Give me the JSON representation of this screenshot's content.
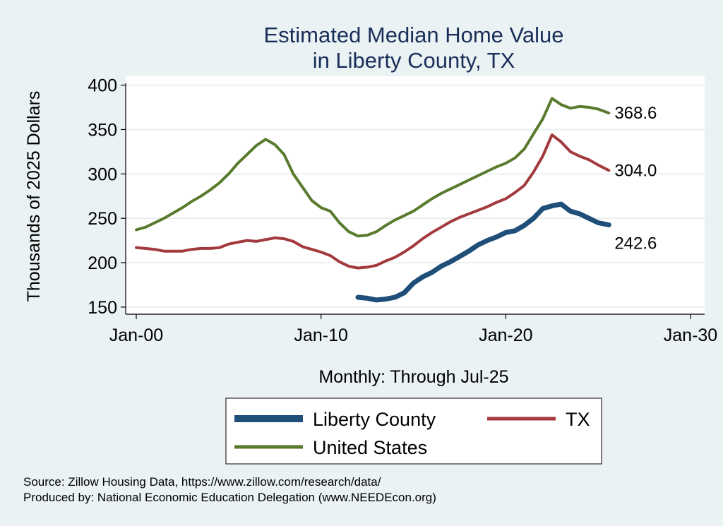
{
  "chart_data": {
    "type": "line",
    "title": "Estimated Median Home Value",
    "subtitle": "in Liberty County, TX",
    "xlabel": "Monthly: Through Jul-25",
    "ylabel": "Thousands of 2025 Dollars",
    "x_ticks": [
      "Jan-00",
      "Jan-10",
      "Jan-20",
      "Jan-30"
    ],
    "y_ticks": [
      150,
      200,
      250,
      300,
      350,
      400
    ],
    "xlim": [
      2000,
      2030
    ],
    "ylim": [
      142,
      410
    ],
    "grid": true,
    "legend_position": "bottom",
    "series": [
      {
        "name": "Liberty County",
        "color": "#1f4e79",
        "end_label": "242.6",
        "points": [
          [
            2012.0,
            161
          ],
          [
            2012.5,
            160
          ],
          [
            2013.0,
            158
          ],
          [
            2013.5,
            159
          ],
          [
            2014.0,
            161
          ],
          [
            2014.5,
            166
          ],
          [
            2015.0,
            177
          ],
          [
            2015.5,
            184
          ],
          [
            2016.0,
            189
          ],
          [
            2016.5,
            196
          ],
          [
            2017.0,
            201
          ],
          [
            2017.5,
            207
          ],
          [
            2018.0,
            213
          ],
          [
            2018.5,
            220
          ],
          [
            2019.0,
            225
          ],
          [
            2019.5,
            229
          ],
          [
            2020.0,
            234
          ],
          [
            2020.5,
            236
          ],
          [
            2021.0,
            242
          ],
          [
            2021.5,
            250
          ],
          [
            2022.0,
            261
          ],
          [
            2022.5,
            264
          ],
          [
            2023.0,
            266
          ],
          [
            2023.5,
            258
          ],
          [
            2024.0,
            255
          ],
          [
            2024.5,
            250
          ],
          [
            2025.0,
            245
          ],
          [
            2025.58,
            242.6
          ]
        ]
      },
      {
        "name": "TX",
        "color": "#a23a3e",
        "end_label": "304.0",
        "points": [
          [
            2000.0,
            217
          ],
          [
            2000.5,
            216
          ],
          [
            2001.0,
            215
          ],
          [
            2001.5,
            213
          ],
          [
            2002.0,
            213
          ],
          [
            2002.5,
            213
          ],
          [
            2003.0,
            215
          ],
          [
            2003.5,
            216
          ],
          [
            2004.0,
            216
          ],
          [
            2004.5,
            217
          ],
          [
            2005.0,
            221
          ],
          [
            2005.5,
            223
          ],
          [
            2006.0,
            225
          ],
          [
            2006.5,
            224
          ],
          [
            2007.0,
            226
          ],
          [
            2007.5,
            228
          ],
          [
            2008.0,
            227
          ],
          [
            2008.5,
            224
          ],
          [
            2009.0,
            218
          ],
          [
            2009.5,
            215
          ],
          [
            2010.0,
            212
          ],
          [
            2010.5,
            208
          ],
          [
            2011.0,
            201
          ],
          [
            2011.5,
            196
          ],
          [
            2012.0,
            194
          ],
          [
            2012.5,
            195
          ],
          [
            2013.0,
            197
          ],
          [
            2013.5,
            202
          ],
          [
            2014.0,
            206
          ],
          [
            2014.5,
            212
          ],
          [
            2015.0,
            219
          ],
          [
            2015.5,
            227
          ],
          [
            2016.0,
            234
          ],
          [
            2016.5,
            240
          ],
          [
            2017.0,
            246
          ],
          [
            2017.5,
            251
          ],
          [
            2018.0,
            255
          ],
          [
            2018.5,
            259
          ],
          [
            2019.0,
            263
          ],
          [
            2019.5,
            268
          ],
          [
            2020.0,
            272
          ],
          [
            2020.5,
            279
          ],
          [
            2021.0,
            287
          ],
          [
            2021.5,
            302
          ],
          [
            2022.0,
            320
          ],
          [
            2022.5,
            344
          ],
          [
            2023.0,
            336
          ],
          [
            2023.5,
            325
          ],
          [
            2024.0,
            320
          ],
          [
            2024.5,
            316
          ],
          [
            2025.0,
            310
          ],
          [
            2025.58,
            304.0
          ]
        ]
      },
      {
        "name": "United States",
        "color": "#5a7a2e",
        "end_label": "368.6",
        "points": [
          [
            2000.0,
            237
          ],
          [
            2000.5,
            240
          ],
          [
            2001.0,
            245
          ],
          [
            2001.5,
            250
          ],
          [
            2002.0,
            256
          ],
          [
            2002.5,
            262
          ],
          [
            2003.0,
            269
          ],
          [
            2003.5,
            275
          ],
          [
            2004.0,
            282
          ],
          [
            2004.5,
            290
          ],
          [
            2005.0,
            300
          ],
          [
            2005.5,
            312
          ],
          [
            2006.0,
            322
          ],
          [
            2006.5,
            332
          ],
          [
            2007.0,
            339
          ],
          [
            2007.5,
            333
          ],
          [
            2008.0,
            322
          ],
          [
            2008.5,
            300
          ],
          [
            2009.0,
            285
          ],
          [
            2009.5,
            270
          ],
          [
            2010.0,
            262
          ],
          [
            2010.5,
            258
          ],
          [
            2011.0,
            245
          ],
          [
            2011.5,
            235
          ],
          [
            2012.0,
            230
          ],
          [
            2012.5,
            231
          ],
          [
            2013.0,
            235
          ],
          [
            2013.5,
            242
          ],
          [
            2014.0,
            248
          ],
          [
            2014.5,
            253
          ],
          [
            2015.0,
            258
          ],
          [
            2015.5,
            265
          ],
          [
            2016.0,
            272
          ],
          [
            2016.5,
            278
          ],
          [
            2017.0,
            283
          ],
          [
            2017.5,
            288
          ],
          [
            2018.0,
            293
          ],
          [
            2018.5,
            298
          ],
          [
            2019.0,
            303
          ],
          [
            2019.5,
            308
          ],
          [
            2020.0,
            312
          ],
          [
            2020.5,
            318
          ],
          [
            2021.0,
            328
          ],
          [
            2021.5,
            345
          ],
          [
            2022.0,
            362
          ],
          [
            2022.5,
            385
          ],
          [
            2023.0,
            378
          ],
          [
            2023.5,
            374
          ],
          [
            2024.0,
            376
          ],
          [
            2024.5,
            375
          ],
          [
            2025.0,
            373
          ],
          [
            2025.58,
            368.6
          ]
        ]
      }
    ]
  },
  "notes": {
    "source": "Source: Zillow Housing Data, https://www.zillow.com/research/data/",
    "produced_by": "Produced by: National Economic Education Delegation (www.NEEDEcon.org)"
  }
}
